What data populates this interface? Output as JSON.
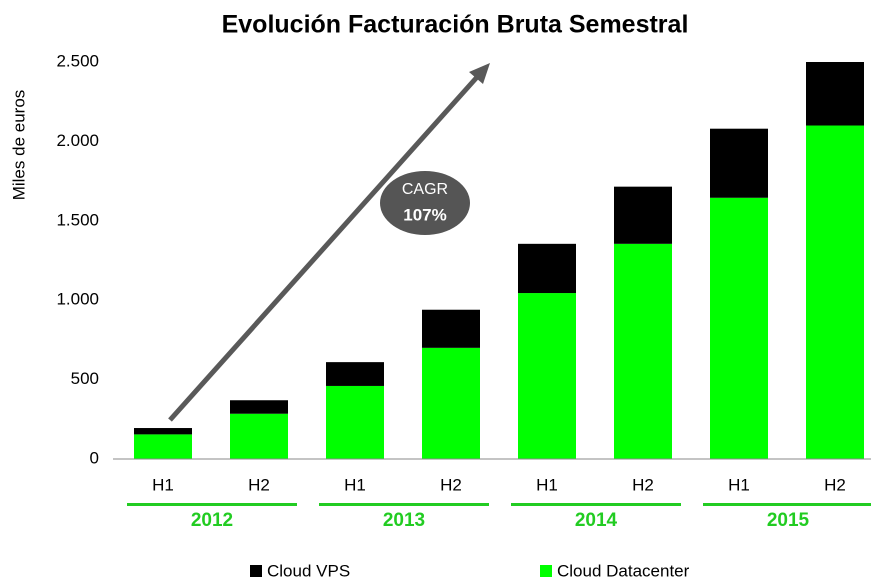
{
  "chart_data": {
    "type": "stacked_bar",
    "title": "Evolución Facturación Bruta Semestral",
    "ylabel": "Miles de euros",
    "categories": [
      "H1",
      "H2",
      "H1",
      "H2",
      "H1",
      "H2",
      "H1",
      "H2"
    ],
    "groups": [
      "2012",
      "2013",
      "2014",
      "2015"
    ],
    "series": [
      {
        "name": "Cloud VPS",
        "color": "#000000",
        "values": [
          40,
          85,
          150,
          240,
          310,
          360,
          435,
          400
        ]
      },
      {
        "name": "Cloud Datacenter",
        "color": "#00ff00",
        "values": [
          155,
          285,
          460,
          700,
          1045,
          1355,
          1645,
          2100
        ]
      }
    ],
    "ylim": [
      0,
      2500
    ],
    "yticks": [
      0,
      500,
      {
        "value": 1000,
        "label": "1.000"
      },
      {
        "value": 1500,
        "label": "1.500"
      },
      {
        "value": 2000,
        "label": "2.000"
      },
      {
        "value": 2500,
        "label": "2.500"
      }
    ],
    "annotation": {
      "title": "CAGR",
      "value": "107%"
    },
    "group_color": "#22cc22"
  }
}
